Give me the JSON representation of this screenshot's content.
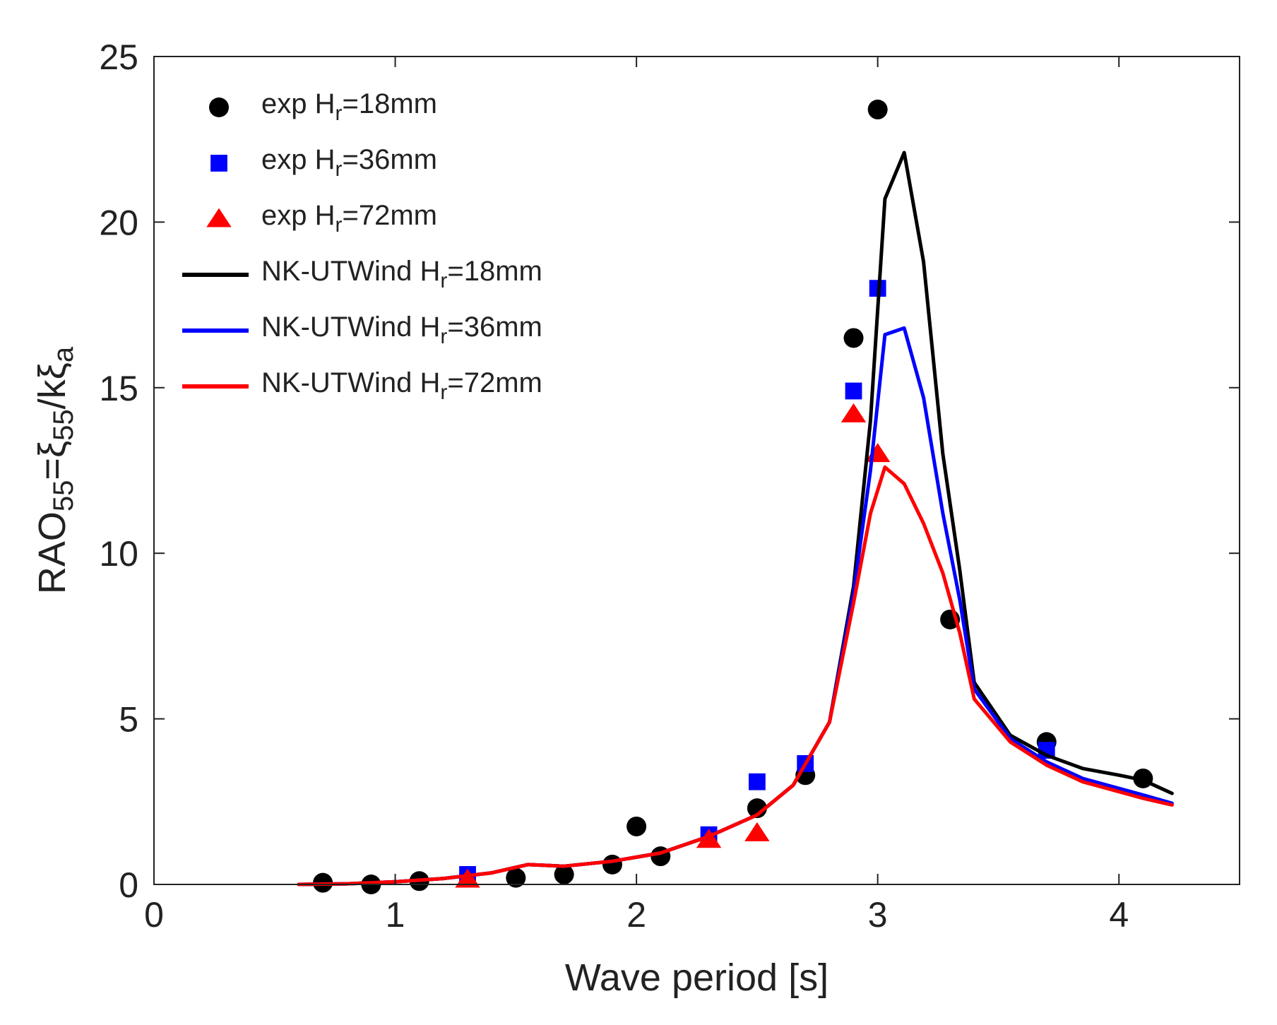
{
  "chart_data": {
    "type": "line",
    "xlabel": "Wave period [s]",
    "ylabel_parts": [
      {
        "text": "RAO",
        "pos": "base"
      },
      {
        "text": "55",
        "pos": "sub"
      },
      {
        "text": "=ξ",
        "pos": "base"
      },
      {
        "text": "55",
        "pos": "sub"
      },
      {
        "text": "/kξ",
        "pos": "base"
      },
      {
        "text": "a",
        "pos": "sub"
      }
    ],
    "xlim": [
      0,
      4.5
    ],
    "ylim": [
      0,
      25
    ],
    "xticks": [
      0,
      1,
      2,
      3,
      4
    ],
    "yticks": [
      0,
      5,
      10,
      15,
      20,
      25
    ],
    "xtick_labels": [
      "0",
      "1",
      "2",
      "3",
      "4"
    ],
    "ytick_labels": [
      "0",
      "5",
      "10",
      "15",
      "20",
      "25"
    ],
    "grid": false,
    "legend_position": "top-left",
    "series": [
      {
        "kind": "marker",
        "marker": "circle",
        "color": "#000000",
        "label_main": "exp H",
        "label_sub": "r",
        "label_tail": "=18mm",
        "points": [
          [
            0.7,
            0.05
          ],
          [
            0.9,
            0.0
          ],
          [
            1.1,
            0.1
          ],
          [
            1.5,
            0.2
          ],
          [
            1.7,
            0.3
          ],
          [
            1.9,
            0.6
          ],
          [
            2.0,
            1.75
          ],
          [
            2.1,
            0.85
          ],
          [
            2.5,
            2.3
          ],
          [
            2.7,
            3.3
          ],
          [
            2.9,
            16.5
          ],
          [
            3.0,
            23.4
          ],
          [
            3.3,
            8.0
          ],
          [
            3.7,
            4.3
          ],
          [
            4.1,
            3.2
          ]
        ]
      },
      {
        "kind": "marker",
        "marker": "square",
        "color": "#0000ff",
        "label_main": "exp H",
        "label_sub": "r",
        "label_tail": "=36mm",
        "points": [
          [
            1.3,
            0.3
          ],
          [
            2.3,
            1.5
          ],
          [
            2.5,
            3.1
          ],
          [
            2.7,
            3.65
          ],
          [
            2.9,
            14.9
          ],
          [
            3.0,
            18.0
          ],
          [
            3.7,
            4.05
          ]
        ]
      },
      {
        "kind": "marker",
        "marker": "triangle",
        "color": "#ff0000",
        "label_main": "exp H",
        "label_sub": "r",
        "label_tail": "=72mm",
        "points": [
          [
            1.3,
            0.15
          ],
          [
            2.3,
            1.35
          ],
          [
            2.5,
            1.55
          ],
          [
            2.9,
            14.2
          ],
          [
            3.0,
            13.0
          ]
        ]
      },
      {
        "kind": "line",
        "color": "#000000",
        "label_main": "NK-UTWind H",
        "label_sub": "r",
        "label_tail": "=18mm",
        "points": [
          [
            0.6,
            0.0
          ],
          [
            0.8,
            0.02
          ],
          [
            1.0,
            0.08
          ],
          [
            1.2,
            0.18
          ],
          [
            1.4,
            0.35
          ],
          [
            1.55,
            0.6
          ],
          [
            1.7,
            0.55
          ],
          [
            1.9,
            0.7
          ],
          [
            2.1,
            0.95
          ],
          [
            2.3,
            1.45
          ],
          [
            2.5,
            2.1
          ],
          [
            2.65,
            3.0
          ],
          [
            2.8,
            4.9
          ],
          [
            2.9,
            9.0
          ],
          [
            2.97,
            14.0
          ],
          [
            3.03,
            20.7
          ],
          [
            3.11,
            22.1
          ],
          [
            3.19,
            18.8
          ],
          [
            3.27,
            13.0
          ],
          [
            3.34,
            9.5
          ],
          [
            3.4,
            6.1
          ],
          [
            3.55,
            4.5
          ],
          [
            3.7,
            3.9
          ],
          [
            3.85,
            3.5
          ],
          [
            4.0,
            3.3
          ],
          [
            4.1,
            3.15
          ],
          [
            4.22,
            2.75
          ]
        ]
      },
      {
        "kind": "line",
        "color": "#0000ff",
        "label_main": "NK-UTWind H",
        "label_sub": "r",
        "label_tail": "=36mm",
        "points": [
          [
            0.6,
            0.0
          ],
          [
            0.8,
            0.02
          ],
          [
            1.0,
            0.08
          ],
          [
            1.2,
            0.18
          ],
          [
            1.4,
            0.35
          ],
          [
            1.55,
            0.6
          ],
          [
            1.7,
            0.55
          ],
          [
            1.9,
            0.7
          ],
          [
            2.1,
            0.95
          ],
          [
            2.3,
            1.45
          ],
          [
            2.5,
            2.1
          ],
          [
            2.65,
            3.0
          ],
          [
            2.8,
            4.9
          ],
          [
            2.9,
            8.8
          ],
          [
            2.97,
            12.5
          ],
          [
            3.03,
            16.6
          ],
          [
            3.11,
            16.8
          ],
          [
            3.19,
            14.7
          ],
          [
            3.27,
            11.2
          ],
          [
            3.34,
            8.6
          ],
          [
            3.4,
            5.9
          ],
          [
            3.55,
            4.4
          ],
          [
            3.7,
            3.7
          ],
          [
            3.85,
            3.2
          ],
          [
            4.0,
            2.9
          ],
          [
            4.1,
            2.7
          ],
          [
            4.22,
            2.45
          ]
        ]
      },
      {
        "kind": "line",
        "color": "#ff0000",
        "label_main": "NK-UTWind H",
        "label_sub": "r",
        "label_tail": "=72mm",
        "points": [
          [
            0.6,
            0.0
          ],
          [
            0.8,
            0.02
          ],
          [
            1.0,
            0.08
          ],
          [
            1.2,
            0.18
          ],
          [
            1.4,
            0.35
          ],
          [
            1.55,
            0.6
          ],
          [
            1.7,
            0.55
          ],
          [
            1.9,
            0.7
          ],
          [
            2.1,
            0.95
          ],
          [
            2.3,
            1.45
          ],
          [
            2.5,
            2.1
          ],
          [
            2.65,
            3.0
          ],
          [
            2.8,
            4.9
          ],
          [
            2.9,
            8.5
          ],
          [
            2.97,
            11.2
          ],
          [
            3.03,
            12.6
          ],
          [
            3.11,
            12.1
          ],
          [
            3.19,
            10.9
          ],
          [
            3.27,
            9.4
          ],
          [
            3.34,
            7.6
          ],
          [
            3.4,
            5.6
          ],
          [
            3.55,
            4.3
          ],
          [
            3.7,
            3.6
          ],
          [
            3.85,
            3.1
          ],
          [
            4.0,
            2.8
          ],
          [
            4.1,
            2.6
          ],
          [
            4.22,
            2.4
          ]
        ]
      }
    ]
  }
}
